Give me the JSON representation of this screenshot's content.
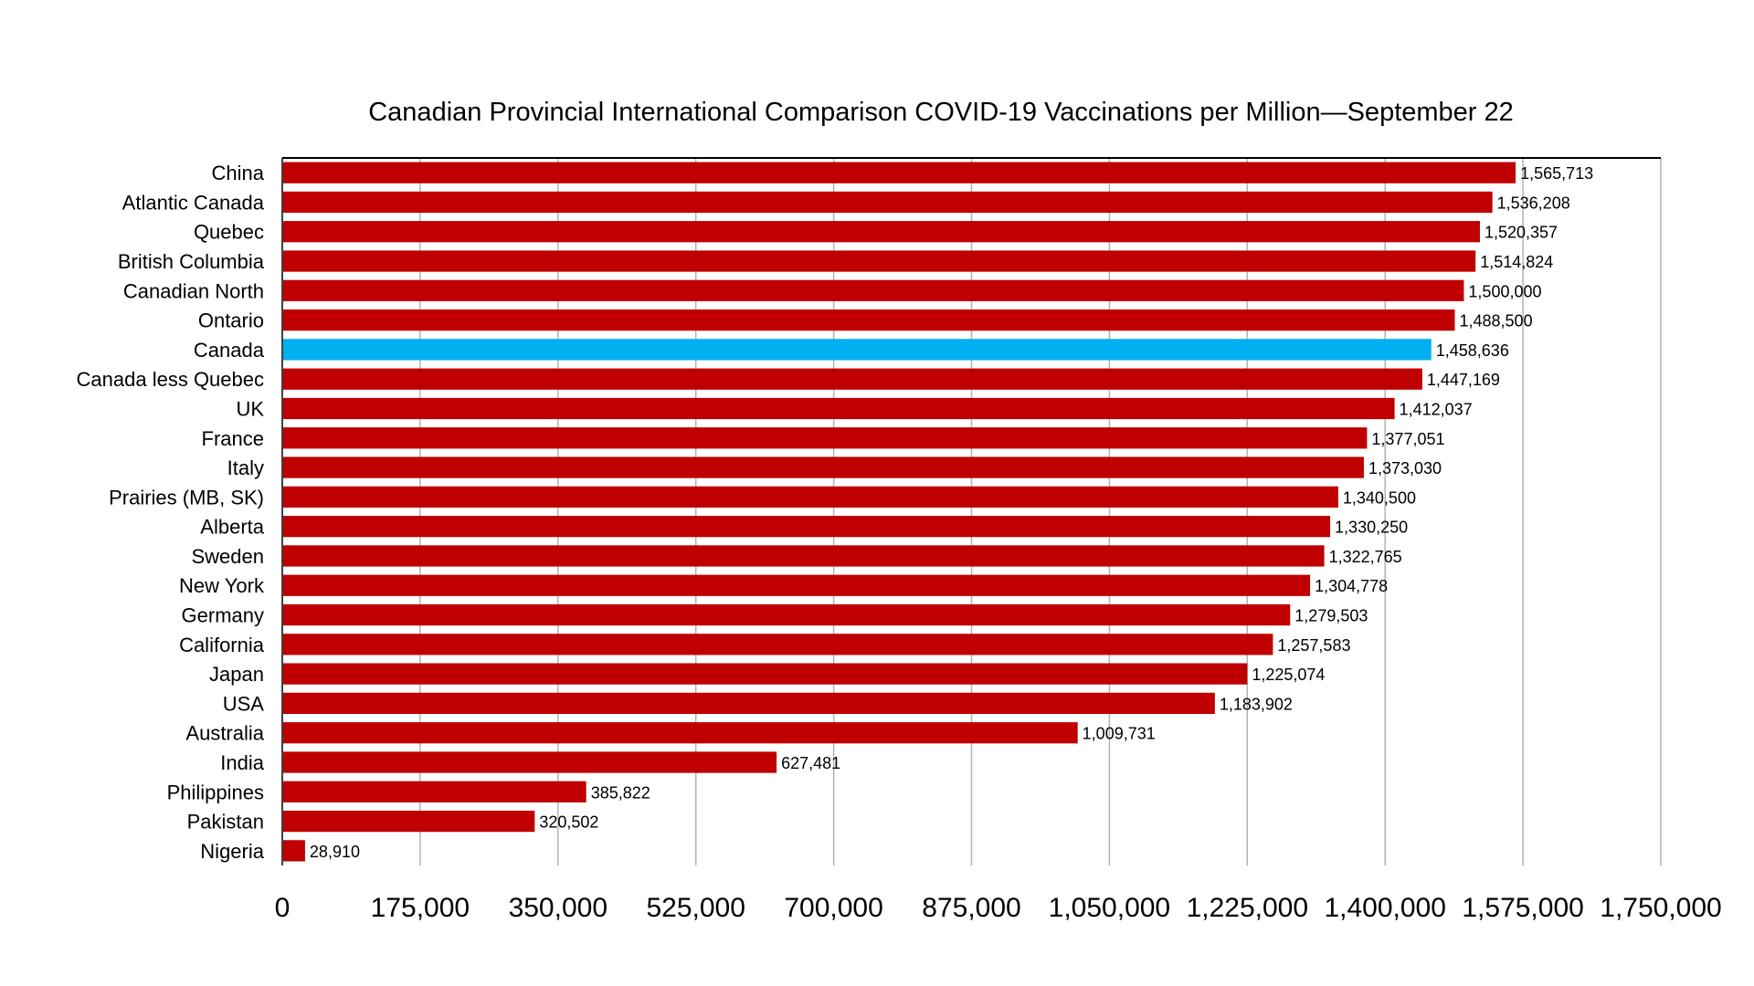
{
  "chart_data": {
    "type": "bar",
    "orientation": "horizontal",
    "title": "Canadian Provincial International Comparison COVID-19 Vaccinations per Million—September 22",
    "xlabel": "",
    "ylabel": "",
    "xlim": [
      0,
      1750000
    ],
    "x_ticks": [
      0,
      175000,
      350000,
      525000,
      700000,
      875000,
      1050000,
      1225000,
      1400000,
      1575000,
      1750000
    ],
    "x_tick_labels": [
      "0",
      "175,000",
      "350,000",
      "525,000",
      "700,000",
      "875,000",
      "1,050,000",
      "1,225,000",
      "1,400,000",
      "1,575,000",
      "1,750,000"
    ],
    "grid": "vertical",
    "legend": "none",
    "colors": {
      "default": "#c00000",
      "highlight": "#00b0f0"
    },
    "highlight_category": "Canada",
    "categories": [
      "China",
      "Atlantic Canada",
      "Quebec",
      "British Columbia",
      "Canadian North",
      "Ontario",
      "Canada",
      "Canada less Quebec",
      "UK",
      "France",
      "Italy",
      "Prairies (MB, SK)",
      "Alberta",
      "Sweden",
      "New York",
      "Germany",
      "California",
      "Japan",
      "USA",
      "Australia",
      "India",
      "Philippines",
      "Pakistan",
      "Nigeria"
    ],
    "values": [
      1565713,
      1536208,
      1520357,
      1514824,
      1500000,
      1488500,
      1458636,
      1447169,
      1412037,
      1377051,
      1373030,
      1340500,
      1330250,
      1322765,
      1304778,
      1279503,
      1257583,
      1225074,
      1183902,
      1009731,
      627481,
      385822,
      320502,
      28910
    ],
    "data_labels": [
      "1,565,713",
      "1,536,208",
      "1,520,357",
      "1,514,824",
      "1,500,000",
      "1,488,500",
      "1,458,636",
      "1,447,169",
      "1,412,037",
      "1,377,051",
      "1,373,030",
      "1,340,500",
      "1,330,250",
      "1,322,765",
      "1,304,778",
      "1,279,503",
      "1,257,583",
      "1,225,074",
      "1,183,902",
      "1,009,731",
      "627,481",
      "385,822",
      "320,502",
      "28,910"
    ]
  }
}
